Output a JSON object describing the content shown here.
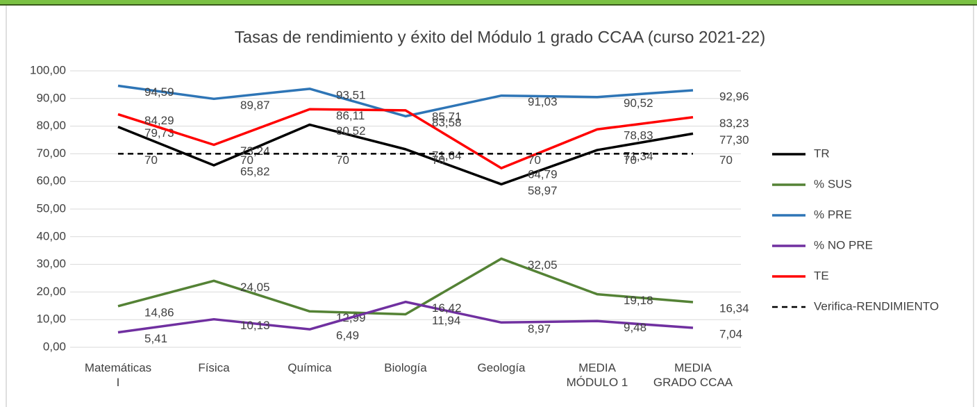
{
  "chart_data": {
    "type": "line",
    "title": "Tasas de rendimiento y éxito del Módulo 1 grado CCAA (curso 2021-22)",
    "categories": [
      "Matemáticas\nI",
      "Física",
      "Química",
      "Biología",
      "Geología",
      "MEDIA\nMÓDULO 1",
      "MEDIA\nGRADO CCAA"
    ],
    "ylim": [
      0,
      100
    ],
    "yticks": [
      {
        "value": 0,
        "label": "0,00"
      },
      {
        "value": 10,
        "label": "10,00"
      },
      {
        "value": 20,
        "label": "20,00"
      },
      {
        "value": 30,
        "label": "30,00"
      },
      {
        "value": 40,
        "label": "40,00"
      },
      {
        "value": 50,
        "label": "50,00"
      },
      {
        "value": 60,
        "label": "60,00"
      },
      {
        "value": 70,
        "label": "70,00"
      },
      {
        "value": 80,
        "label": "80,00"
      },
      {
        "value": 90,
        "label": "90,00"
      },
      {
        "value": 100,
        "label": "100,00"
      }
    ],
    "grid": true,
    "legend": "right",
    "series": [
      {
        "name": "TR",
        "color": "#000000",
        "values": [
          79.73,
          65.82,
          80.52,
          71.64,
          58.97,
          71.34,
          77.3
        ],
        "value_labels": [
          "79,73",
          "65,82",
          "80,52",
          "71,64",
          "58,97",
          "71,34",
          "77,30"
        ]
      },
      {
        "name": "% SUS",
        "color": "#548235",
        "values": [
          14.86,
          24.05,
          12.99,
          11.94,
          32.05,
          19.18,
          16.34
        ],
        "value_labels": [
          "14,86",
          "24,05",
          "12,99",
          "11,94",
          "32,05",
          "19,18",
          "16,34"
        ]
      },
      {
        "name": "% PRE",
        "color": "#2e75b6",
        "values": [
          94.59,
          89.87,
          93.51,
          83.58,
          91.03,
          90.52,
          92.96
        ],
        "value_labels": [
          "94,59",
          "89,87",
          "93,51",
          "83,58",
          "91,03",
          "90,52",
          "92,96"
        ]
      },
      {
        "name": "% NO PRE",
        "color": "#7030a0",
        "values": [
          5.41,
          10.13,
          6.49,
          16.42,
          8.97,
          9.48,
          7.04
        ],
        "value_labels": [
          "5,41",
          "10,13",
          "6,49",
          "16,42",
          "8,97",
          "9,48",
          "7,04"
        ]
      },
      {
        "name": "TE",
        "color": "#ff0000",
        "values": [
          84.29,
          73.24,
          86.11,
          85.71,
          64.79,
          78.83,
          83.23
        ],
        "value_labels": [
          "84,29",
          "73,24",
          "86,11",
          "85,71",
          "64,79",
          "78,83",
          "83,23"
        ]
      },
      {
        "name": "Verifica-RENDIMIENTO",
        "color": "#000000",
        "dashed": true,
        "values": [
          70,
          70,
          70,
          70,
          70,
          70,
          70
        ]
      }
    ]
  }
}
